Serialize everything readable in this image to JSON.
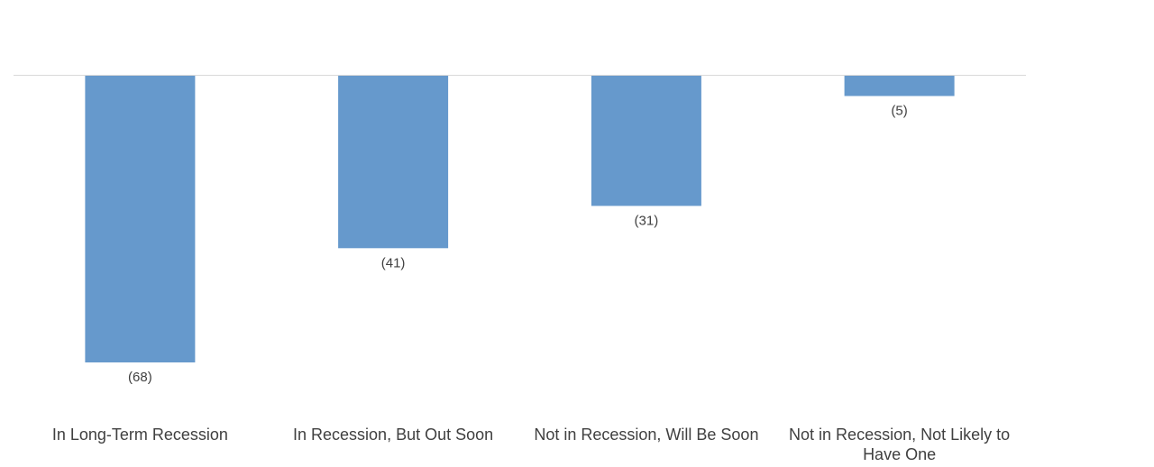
{
  "chart_data": {
    "type": "bar",
    "categories": [
      "In Long-Term Recession",
      "In Recession, But Out Soon",
      "Not in Recession, Will Be Soon",
      "Not in Recession, Not Likely to Have One"
    ],
    "values": [
      -68,
      -41,
      -31,
      -5
    ],
    "data_labels": [
      "(68)",
      "(41)",
      "(31)",
      "(5)"
    ],
    "category_label_lines": [
      [
        "In Long-Term Recession"
      ],
      [
        "In Recession, But Out Soon"
      ],
      [
        "Not in Recession, Will Be Soon"
      ],
      [
        "Not in Recession, Not Likely to",
        "Have One"
      ]
    ],
    "title": "",
    "xlabel": "",
    "ylabel": "",
    "ylim": [
      -68,
      0
    ],
    "grid": false,
    "legend": "none",
    "colors": {
      "bar": "#6699cc",
      "baseline": "#d9d9d9",
      "text": "#404040"
    }
  }
}
